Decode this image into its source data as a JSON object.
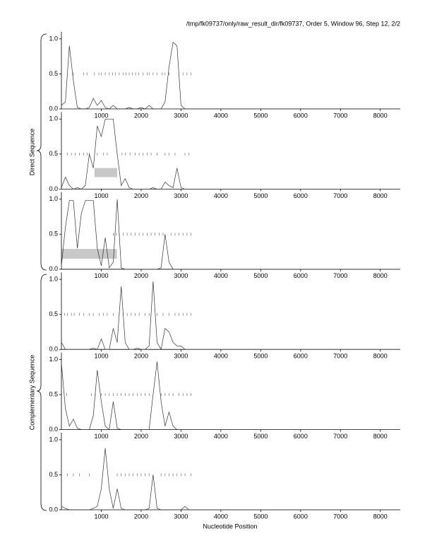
{
  "page": {
    "title": "/tmp/fk09737/only/raw_result_dir/fk09737, Order 5, Window 96, Step 12, 2/2",
    "xlabel": "Nucleotide Position",
    "groups": [
      "Direct Sequence",
      "Complementary Sequence"
    ]
  },
  "chart_data": [
    {
      "type": "line",
      "color": "#333333",
      "xlim": [
        0,
        8500
      ],
      "ylim": [
        0,
        1.1
      ],
      "xticks": [
        1000,
        2000,
        3000,
        4000,
        5000,
        6000,
        7000,
        8000
      ],
      "yticks": [
        {
          "value": 0,
          "label": "0.0"
        },
        0.5,
        {
          "value": 1,
          "label": "1.0"
        }
      ],
      "x": [
        0,
        100,
        200,
        300,
        400,
        500,
        600,
        700,
        800,
        900,
        1000,
        1100,
        1200,
        1300,
        1400,
        1500,
        1600,
        1700,
        1800,
        1900,
        2000,
        2100,
        2200,
        2300,
        2400,
        2500,
        2600,
        2700,
        2800,
        2900,
        3000,
        3100,
        3200,
        3300,
        3400,
        8500
      ],
      "values": [
        0.05,
        0.1,
        0.9,
        0.4,
        0.02,
        0,
        0,
        0.02,
        0.15,
        0.05,
        0.12,
        0.02,
        0,
        0.05,
        0,
        0,
        0,
        0.02,
        0,
        0,
        0.02,
        0,
        0.05,
        0,
        0,
        0,
        0.1,
        0.6,
        0.95,
        0.9,
        0.05,
        0,
        0,
        0,
        0,
        0
      ],
      "marker_level": 0.5,
      "markers": [
        300,
        560,
        640,
        830,
        940,
        1000,
        1100,
        1200,
        1280,
        1350,
        1450,
        1550,
        1620,
        1700,
        1780,
        1860,
        1940,
        2050,
        2150,
        2200,
        2300,
        2400,
        2520,
        2600,
        2700,
        3050,
        3150,
        3250
      ],
      "regions": []
    },
    {
      "type": "line",
      "color": "#333333",
      "xlim": [
        0,
        8500
      ],
      "ylim": [
        0,
        1.1
      ],
      "xticks": [
        1000,
        2000,
        3000,
        4000,
        5000,
        6000,
        7000,
        8000
      ],
      "yticks": [
        {
          "value": 0,
          "label": "0.0"
        },
        0.5,
        {
          "value": 1,
          "label": "1.0"
        }
      ],
      "x": [
        0,
        100,
        200,
        300,
        400,
        500,
        600,
        700,
        800,
        900,
        1000,
        1100,
        1200,
        1300,
        1400,
        1500,
        1600,
        1700,
        1800,
        1900,
        2000,
        2100,
        2200,
        2300,
        2400,
        2500,
        2600,
        2700,
        2800,
        2900,
        3000,
        3100,
        3200,
        3300,
        3400,
        8500
      ],
      "values": [
        0.02,
        0.17,
        0.05,
        0,
        0.02,
        0,
        0.05,
        0.5,
        0.3,
        0.9,
        0.75,
        1.0,
        1.0,
        1.0,
        0.5,
        0.05,
        0.15,
        0.02,
        0,
        0,
        0,
        0,
        0,
        0.02,
        0,
        0,
        0.1,
        0.05,
        0.02,
        0.3,
        0.02,
        0,
        0,
        0,
        0,
        0
      ],
      "marker_level": 0.5,
      "markers": [
        150,
        250,
        350,
        450,
        560,
        650,
        700,
        900,
        1050,
        1150,
        1520,
        1600,
        1720,
        1850,
        1950,
        2050,
        2150,
        2250,
        2400,
        2600,
        2700,
        2850,
        3100,
        3200
      ],
      "regions": [
        {
          "start": 830,
          "end": 1400,
          "low": 0.17,
          "high": 0.3
        }
      ]
    },
    {
      "type": "line",
      "color": "#333333",
      "xlim": [
        0,
        8500
      ],
      "ylim": [
        0,
        1.1
      ],
      "xticks": [
        1000,
        2000,
        3000,
        4000,
        5000,
        6000,
        7000,
        8000
      ],
      "yticks": [
        {
          "value": 0,
          "label": "0.0"
        },
        0.5,
        {
          "value": 1,
          "label": "1.0"
        }
      ],
      "x": [
        0,
        100,
        200,
        300,
        400,
        500,
        600,
        700,
        800,
        900,
        1000,
        1100,
        1200,
        1300,
        1400,
        1500,
        1600,
        1700,
        1800,
        1900,
        2000,
        2100,
        2200,
        2300,
        2400,
        2500,
        2600,
        2700,
        2800,
        2900,
        3000,
        3100,
        3200,
        3300,
        3400,
        8500
      ],
      "values": [
        0.05,
        0.6,
        0.98,
        0.98,
        0.3,
        0.8,
        0.98,
        0.98,
        0.98,
        0.3,
        0.05,
        0.45,
        0.02,
        0.1,
        1.0,
        0.02,
        0,
        0,
        0,
        0,
        0,
        0,
        0,
        0,
        0,
        0.02,
        0.5,
        0.1,
        0,
        0,
        0,
        0,
        0,
        0,
        0,
        0
      ],
      "marker_level": 0.5,
      "markers": [
        1300,
        1380,
        1450,
        1550,
        1650,
        1750,
        1850,
        1950,
        2050,
        2150,
        2250,
        2350,
        2450,
        2550,
        2750,
        2850,
        2950,
        3050,
        3150,
        3250
      ],
      "regions": [
        {
          "start": 0,
          "end": 1390,
          "low": 0.15,
          "high": 0.29
        }
      ]
    },
    {
      "type": "line",
      "color": "#333333",
      "xlim": [
        0,
        8500
      ],
      "ylim": [
        0,
        1.1
      ],
      "xticks": [
        1000,
        2000,
        3000,
        4000,
        5000,
        6000,
        7000,
        8000
      ],
      "yticks": [
        {
          "value": 0,
          "label": "0.0"
        },
        0.5,
        {
          "value": 1,
          "label": "1.0"
        }
      ],
      "x": [
        0,
        100,
        200,
        300,
        400,
        500,
        600,
        700,
        800,
        900,
        1000,
        1100,
        1200,
        1300,
        1400,
        1500,
        1600,
        1700,
        1800,
        1900,
        2000,
        2100,
        2200,
        2300,
        2400,
        2500,
        2600,
        2700,
        2800,
        2900,
        3000,
        3100,
        3200,
        3300,
        3400,
        8500
      ],
      "values": [
        0.1,
        0,
        0,
        0,
        0,
        0,
        0,
        0,
        0.02,
        0,
        0.15,
        0,
        0,
        0.3,
        0.1,
        0.9,
        0.1,
        0,
        0,
        0.02,
        0,
        0,
        0.05,
        0.97,
        0.1,
        0,
        0.3,
        0.25,
        0.1,
        0.05,
        0.05,
        0,
        0,
        0,
        0,
        0
      ],
      "marker_level": 0.5,
      "markers": [
        80,
        150,
        250,
        320,
        450,
        560,
        700,
        800,
        950,
        1050,
        1150,
        1300,
        1450,
        1550,
        1650,
        1750,
        1850,
        1950,
        2100,
        2200,
        2400,
        2550,
        2700,
        2850,
        2950,
        3050,
        3150,
        3250
      ],
      "regions": []
    },
    {
      "type": "line",
      "color": "#333333",
      "xlim": [
        0,
        8500
      ],
      "ylim": [
        0,
        1.1
      ],
      "xticks": [
        1000,
        2000,
        3000,
        4000,
        5000,
        6000,
        7000,
        8000
      ],
      "yticks": [
        {
          "value": 0,
          "label": "0.0"
        },
        0.5,
        {
          "value": 1,
          "label": "1.0"
        }
      ],
      "x": [
        0,
        100,
        200,
        300,
        400,
        500,
        600,
        700,
        800,
        900,
        1000,
        1100,
        1200,
        1300,
        1400,
        1500,
        1600,
        1700,
        1800,
        1900,
        2000,
        2100,
        2200,
        2300,
        2400,
        2500,
        2600,
        2700,
        2800,
        2900,
        3000,
        3100,
        3200,
        3300,
        3400,
        8500
      ],
      "values": [
        0.95,
        0.3,
        0.05,
        0.15,
        0.02,
        0,
        0,
        0,
        0.2,
        0.85,
        0.4,
        0.05,
        0,
        0.4,
        0.02,
        0,
        0,
        0,
        0,
        0,
        0,
        0,
        0,
        0.5,
        0.97,
        0.4,
        0.05,
        0.25,
        0.05,
        0,
        0,
        0,
        0,
        0,
        0,
        0
      ],
      "marker_level": 0.5,
      "markers": [
        130,
        750,
        850,
        1000,
        1100,
        1200,
        1300,
        1400,
        1500,
        1600,
        1700,
        1800,
        1900,
        2000,
        2100,
        2200,
        2500,
        2600,
        2700,
        2800,
        2950,
        3050,
        3150,
        3250
      ],
      "regions": []
    },
    {
      "type": "line",
      "color": "#333333",
      "xlim": [
        0,
        8500
      ],
      "ylim": [
        0,
        1.1
      ],
      "xticks": [
        1000,
        2000,
        3000,
        4000,
        5000,
        6000,
        7000,
        8000
      ],
      "yticks": [
        {
          "value": 0,
          "label": "0.0"
        },
        0.5,
        {
          "value": 1,
          "label": "1.0"
        }
      ],
      "x": [
        0,
        100,
        200,
        300,
        400,
        500,
        600,
        700,
        800,
        900,
        1000,
        1100,
        1200,
        1300,
        1400,
        1500,
        1600,
        1700,
        1800,
        1900,
        2000,
        2100,
        2200,
        2300,
        2400,
        2500,
        2600,
        2700,
        2800,
        2900,
        3000,
        3100,
        3200,
        3300,
        3400,
        8500
      ],
      "values": [
        0.05,
        0.02,
        0,
        0,
        0,
        0,
        0,
        0,
        0.02,
        0.05,
        0.3,
        0.88,
        0.3,
        0.02,
        0.3,
        0.02,
        0,
        0,
        0,
        0,
        0,
        0,
        0.02,
        0.5,
        0.02,
        0,
        0,
        0,
        0,
        0,
        0,
        0.05,
        0,
        0,
        0,
        0
      ],
      "marker_level": 0.5,
      "markers": [
        150,
        300,
        450,
        700,
        1400,
        1500,
        1600,
        1700,
        1800,
        1900,
        2000,
        2100,
        2200,
        2500,
        2600,
        2700,
        2800,
        2900,
        3000,
        3100,
        3250
      ],
      "regions": []
    }
  ]
}
